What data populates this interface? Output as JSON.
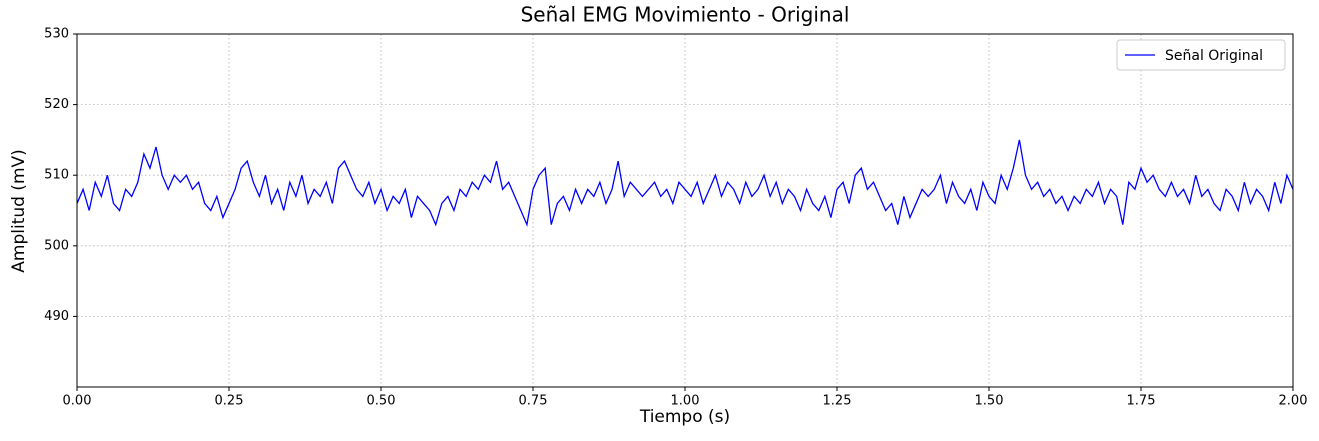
{
  "chart_data": {
    "type": "line",
    "title": "Señal EMG Movimiento - Original",
    "x_label": "Tiempo (s)",
    "y_label": "Amplitud (mV)",
    "x": [
      0,
      0.01,
      0.02,
      0.03,
      0.04,
      0.05,
      0.06,
      0.07,
      0.08,
      0.09,
      0.1,
      0.11,
      0.12,
      0.13,
      0.14,
      0.15,
      0.16,
      0.17,
      0.18,
      0.19,
      0.2,
      0.21,
      0.22,
      0.23,
      0.24,
      0.25,
      0.26,
      0.27,
      0.28,
      0.29,
      0.3,
      0.31,
      0.32,
      0.33,
      0.34,
      0.35,
      0.36,
      0.37,
      0.38,
      0.39,
      0.4,
      0.41,
      0.42,
      0.43,
      0.44,
      0.45,
      0.46,
      0.47,
      0.48,
      0.49,
      0.5,
      0.51,
      0.52,
      0.53,
      0.54,
      0.55,
      0.56,
      0.57,
      0.58,
      0.59,
      0.6,
      0.61,
      0.62,
      0.63,
      0.64,
      0.65,
      0.66,
      0.67,
      0.68,
      0.69,
      0.7,
      0.71,
      0.72,
      0.73,
      0.74,
      0.75,
      0.76,
      0.77,
      0.78,
      0.79,
      0.8,
      0.81,
      0.82,
      0.83,
      0.84,
      0.85,
      0.86,
      0.87,
      0.88,
      0.89,
      0.9,
      0.91,
      0.92,
      0.93,
      0.94,
      0.95,
      0.96,
      0.97,
      0.98,
      0.99,
      1,
      1.01,
      1.02,
      1.03,
      1.04,
      1.05,
      1.06,
      1.07,
      1.08,
      1.09,
      1.1,
      1.11,
      1.12,
      1.13,
      1.14,
      1.15,
      1.16,
      1.17,
      1.18,
      1.19,
      1.2,
      1.21,
      1.22,
      1.23,
      1.24,
      1.25,
      1.26,
      1.27,
      1.28,
      1.29,
      1.3,
      1.31,
      1.32,
      1.33,
      1.34,
      1.35,
      1.36,
      1.37,
      1.38,
      1.39,
      1.4,
      1.41,
      1.42,
      1.43,
      1.44,
      1.45,
      1.46,
      1.47,
      1.48,
      1.49,
      1.5,
      1.51,
      1.52,
      1.53,
      1.54,
      1.55,
      1.56,
      1.57,
      1.58,
      1.59,
      1.6,
      1.61,
      1.62,
      1.63,
      1.64,
      1.65,
      1.66,
      1.67,
      1.68,
      1.69,
      1.7,
      1.71,
      1.72,
      1.73,
      1.74,
      1.75,
      1.76,
      1.77,
      1.78,
      1.79,
      1.8,
      1.81,
      1.82,
      1.83,
      1.84,
      1.85,
      1.86,
      1.87,
      1.88,
      1.89,
      1.9,
      1.91,
      1.92,
      1.93,
      1.94,
      1.95,
      1.96,
      1.97,
      1.98,
      1.99,
      2
    ],
    "series": [
      {
        "name": "Señal Original",
        "color": "#0000ff",
        "values": [
          506,
          508,
          505,
          509,
          507,
          510,
          506,
          505,
          508,
          507,
          509,
          513,
          511,
          514,
          510,
          508,
          510,
          509,
          510,
          508,
          509,
          506,
          505,
          507,
          504,
          506,
          508,
          511,
          512,
          509,
          507,
          510,
          506,
          508,
          505,
          509,
          507,
          510,
          506,
          508,
          507,
          509,
          506,
          511,
          512,
          510,
          508,
          507,
          509,
          506,
          508,
          505,
          507,
          506,
          508,
          504,
          507,
          506,
          505,
          503,
          506,
          507,
          505,
          508,
          507,
          509,
          508,
          510,
          509,
          512,
          508,
          509,
          507,
          505,
          503,
          508,
          510,
          511,
          503,
          506,
          507,
          505,
          508,
          506,
          508,
          507,
          509,
          506,
          508,
          512,
          507,
          509,
          508,
          507,
          508,
          509,
          507,
          508,
          506,
          509,
          508,
          507,
          509,
          506,
          508,
          510,
          507,
          509,
          508,
          506,
          509,
          507,
          508,
          510,
          507,
          509,
          506,
          508,
          507,
          505,
          508,
          506,
          505,
          507,
          504,
          508,
          509,
          506,
          510,
          511,
          508,
          509,
          507,
          505,
          506,
          503,
          507,
          504,
          506,
          508,
          507,
          508,
          510,
          506,
          509,
          507,
          506,
          508,
          505,
          509,
          507,
          506,
          510,
          508,
          511,
          515,
          510,
          508,
          509,
          507,
          508,
          506,
          507,
          505,
          507,
          506,
          508,
          507,
          509,
          506,
          508,
          507,
          503,
          509,
          508,
          511,
          509,
          510,
          508,
          507,
          509,
          507,
          508,
          506,
          510,
          507,
          508,
          506,
          505,
          508,
          507,
          505,
          509,
          506,
          508,
          507,
          505,
          509,
          506,
          510,
          508
        ]
      }
    ],
    "xlim": [
      0,
      2
    ],
    "ylim": [
      480,
      530
    ],
    "xticks": [
      {
        "value": 0,
        "label": "0.00"
      },
      {
        "value": 0.25,
        "label": "0.25"
      },
      {
        "value": 0.5,
        "label": "0.50"
      },
      {
        "value": 0.75,
        "label": "0.75"
      },
      {
        "value": 1,
        "label": "1.00"
      },
      {
        "value": 1.25,
        "label": "1.25"
      },
      {
        "value": 1.5,
        "label": "1.50"
      },
      {
        "value": 1.75,
        "label": "1.75"
      },
      {
        "value": 2,
        "label": "2.00"
      }
    ],
    "yticks": [
      490,
      500,
      510,
      520,
      530
    ],
    "grid": true,
    "legend": "upper right"
  }
}
